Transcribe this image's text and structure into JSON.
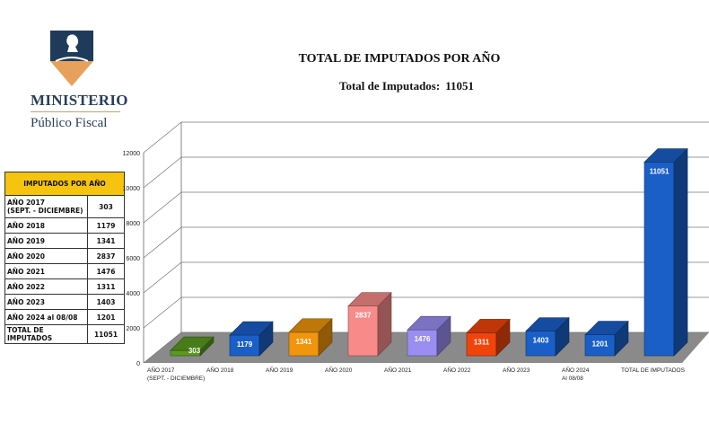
{
  "logo": {
    "line1": "MINISTERIO",
    "line2": "Público Fiscal"
  },
  "header": {
    "title": "TOTAL DE IMPUTADOS POR AÑO",
    "subtitle_label": "Total de Imputados:",
    "subtitle_value": "11051"
  },
  "table": {
    "header": "IMPUTADOS POR AÑO",
    "rows": [
      {
        "label": "AÑO 2017\n(SEPT. - DICIEMBRE)",
        "value": "303"
      },
      {
        "label": "AÑO 2018",
        "value": "1179"
      },
      {
        "label": "AÑO 2019",
        "value": "1341"
      },
      {
        "label": "AÑO 2020",
        "value": "2837"
      },
      {
        "label": "AÑO 2021",
        "value": "1476"
      },
      {
        "label": "AÑO 2022",
        "value": "1311"
      },
      {
        "label": "AÑO 2023",
        "value": "1403"
      },
      {
        "label": "AÑO 2024 al 08/08",
        "value": "1201"
      },
      {
        "label": "TOTAL DE IMPUTADOS",
        "value": "11051"
      }
    ]
  },
  "chart_data": {
    "type": "bar",
    "categories": [
      "AÑO 2017\n(SEPT. - DICIEMBRE)",
      "AÑO 2018",
      "AÑO 2019",
      "AÑO 2020",
      "AÑO 2021",
      "AÑO 2022",
      "AÑO 2023",
      "AÑO 2024\nAl 08/08",
      "TOTAL DE IMPUTADOS"
    ],
    "values": [
      303,
      1179,
      1341,
      2837,
      1476,
      1311,
      1403,
      1201,
      11051
    ],
    "colors": [
      "#5a9a1f",
      "#1a5fc8",
      "#f0950d",
      "#f88a8a",
      "#9a8ef2",
      "#f0440c",
      "#1a5fc8",
      "#1a5fc8",
      "#1a5fc8"
    ],
    "label_colors": [
      "#ffffff",
      "#ffffff",
      "#ffffff",
      "#ffffff",
      "#ffffff",
      "#ffffff",
      "#ffffff",
      "#ffffff",
      "#ffffff"
    ],
    "yticks": [
      0,
      2000,
      4000,
      6000,
      8000,
      10000,
      12000
    ],
    "ylim": [
      0,
      12000
    ],
    "grid": true,
    "style": "3d",
    "title": "",
    "xlabel": "",
    "ylabel": ""
  }
}
